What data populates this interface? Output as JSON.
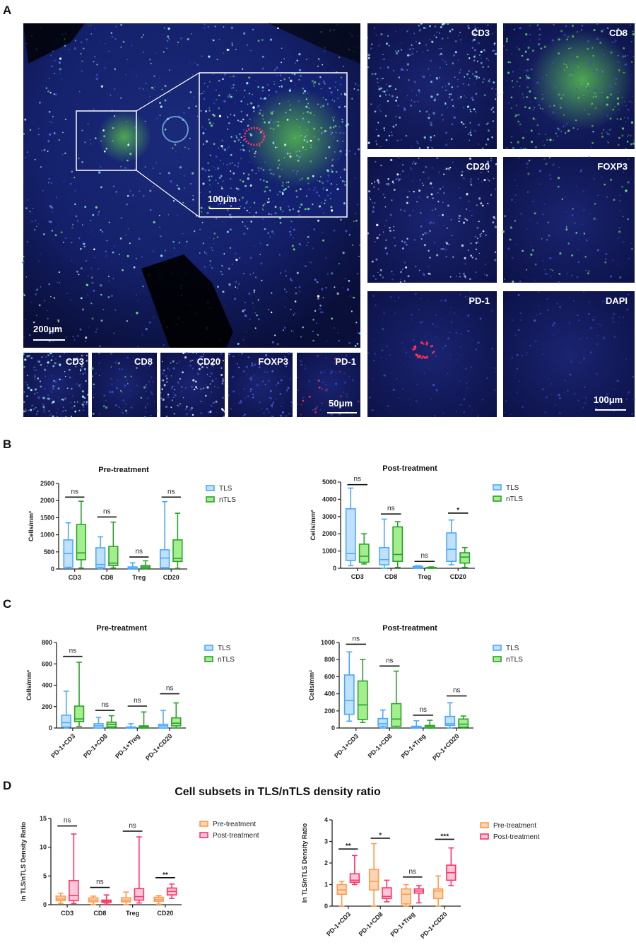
{
  "panel_labels": {
    "a": "A",
    "b": "B",
    "c": "C",
    "d": "D"
  },
  "panel_a": {
    "main_scale": "200μm",
    "inset_scale": "100μm",
    "strip_scale": "50μm",
    "grid_scale": "100μm",
    "grid_labels": [
      "CD3",
      "CD8",
      "CD20",
      "FOXP3",
      "PD-1",
      "DAPI"
    ],
    "strip_labels": [
      "CD3",
      "CD8",
      "CD20",
      "FOXP3",
      "PD-1"
    ]
  },
  "panel_d_title": "Cell subsets in TLS/nTLS density ratio",
  "chart_data": [
    {
      "type": "box",
      "panel": "B",
      "title": "Pre-treatment",
      "ylabel": "Cells/mm²",
      "ylim": [
        0,
        2500
      ],
      "yticks": [
        "0",
        "500",
        "1000",
        "1500",
        "2000",
        "2500"
      ],
      "categories": [
        "CD3",
        "CD8",
        "Treg",
        "CD20"
      ],
      "series": [
        {
          "name": "TLS",
          "color": "#4aa8ff",
          "fill": "#bfe1fb",
          "stats": [
            [
              20,
              50,
              450,
              850,
              1350
            ],
            [
              10,
              50,
              130,
              620,
              940
            ],
            [
              0,
              0,
              20,
              60,
              180
            ],
            [
              20,
              40,
              320,
              560,
              1970
            ]
          ]
        },
        {
          "name": "nTLS",
          "color": "#2ca02c",
          "fill": "#a3ef8e",
          "stats": [
            [
              30,
              270,
              470,
              1300,
              1980
            ],
            [
              30,
              100,
              170,
              660,
              1370
            ],
            [
              0,
              20,
              60,
              100,
              240
            ],
            [
              20,
              220,
              310,
              850,
              1630
            ]
          ]
        }
      ],
      "significance": [
        {
          "label": "ns",
          "y": 2100
        },
        {
          "label": "ns",
          "y": 1520
        },
        {
          "label": "ns",
          "y": 350
        },
        {
          "label": "ns",
          "y": 2100
        }
      ]
    },
    {
      "type": "box",
      "panel": "B",
      "title": "Post-treatment",
      "ylabel": "Cells/mm²",
      "ylim": [
        0,
        5000
      ],
      "yticks": [
        "0",
        "1000",
        "2000",
        "3000",
        "4000",
        "5000"
      ],
      "categories": [
        "CD3",
        "CD8",
        "Treg",
        "CD20"
      ],
      "series": [
        {
          "name": "TLS",
          "color": "#4aa8ff",
          "fill": "#bfe1fb",
          "stats": [
            [
              150,
              450,
              850,
              3450,
              4650
            ],
            [
              0,
              200,
              500,
              1200,
              2850
            ],
            [
              0,
              20,
              60,
              120,
              150
            ],
            [
              200,
              400,
              1100,
              2050,
              2800
            ]
          ]
        },
        {
          "name": "nTLS",
          "color": "#2ca02c",
          "fill": "#a3ef8e",
          "stats": [
            [
              250,
              350,
              700,
              1400,
              2000
            ],
            [
              50,
              400,
              800,
              2400,
              2700
            ],
            [
              0,
              10,
              30,
              50,
              80
            ],
            [
              50,
              300,
              650,
              900,
              1200
            ]
          ]
        }
      ],
      "significance": [
        {
          "label": "ns",
          "y": 4850
        },
        {
          "label": "ns",
          "y": 3150
        },
        {
          "label": "ns",
          "y": 400
        },
        {
          "label": "*",
          "y": 3200
        }
      ]
    },
    {
      "type": "box",
      "panel": "C",
      "title": "Pre-treatment",
      "ylabel": "Cells/mm²",
      "ylim": [
        0,
        800
      ],
      "yticks": [
        "0",
        "200",
        "400",
        "600",
        "800"
      ],
      "categories": [
        "PD-1+CD3",
        "PD-1+CD8",
        "PD-1+Treg",
        "PD-1+CD20"
      ],
      "series": [
        {
          "name": "TLS",
          "color": "#4aa8ff",
          "fill": "#bfe1fb",
          "stats": [
            [
              0,
              10,
              50,
              120,
              345
            ],
            [
              0,
              0,
              20,
              40,
              100
            ],
            [
              0,
              0,
              5,
              10,
              40
            ],
            [
              0,
              0,
              20,
              35,
              165
            ]
          ]
        },
        {
          "name": "nTLS",
          "color": "#2ca02c",
          "fill": "#a3ef8e",
          "stats": [
            [
              15,
              60,
              85,
              205,
              615
            ],
            [
              0,
              10,
              35,
              55,
              115
            ],
            [
              0,
              0,
              10,
              20,
              150
            ],
            [
              0,
              20,
              45,
              95,
              235
            ]
          ]
        }
      ],
      "significance": [
        {
          "label": "ns",
          "y": 670
        },
        {
          "label": "ns",
          "y": 165
        },
        {
          "label": "ns",
          "y": 205
        },
        {
          "label": "ns",
          "y": 320
        }
      ]
    },
    {
      "type": "box",
      "panel": "C",
      "title": "Post-treatment",
      "ylabel": "Cells/mm²",
      "ylim": [
        0,
        1000
      ],
      "yticks": [
        "0",
        "200",
        "400",
        "600",
        "800",
        "1000"
      ],
      "categories": [
        "PD-1+CD3",
        "PD-1+CD8",
        "PD-1+Treg",
        "PD-1+CD20"
      ],
      "series": [
        {
          "name": "TLS",
          "color": "#4aa8ff",
          "fill": "#bfe1fb",
          "stats": [
            [
              80,
              160,
              320,
              620,
              890
            ],
            [
              0,
              20,
              50,
              110,
              210
            ],
            [
              0,
              0,
              10,
              20,
              85
            ],
            [
              0,
              30,
              50,
              135,
              295
            ]
          ]
        },
        {
          "name": "nTLS",
          "color": "#2ca02c",
          "fill": "#a3ef8e",
          "stats": [
            [
              65,
              100,
              270,
              550,
              800
            ],
            [
              0,
              20,
              105,
              285,
              665
            ],
            [
              0,
              0,
              15,
              30,
              90
            ],
            [
              0,
              10,
              45,
              105,
              140
            ]
          ]
        }
      ],
      "significance": [
        {
          "label": "ns",
          "y": 980
        },
        {
          "label": "ns",
          "y": 725
        },
        {
          "label": "ns",
          "y": 150
        },
        {
          "label": "ns",
          "y": 375
        }
      ]
    },
    {
      "type": "box",
      "panel": "D",
      "title": "",
      "ylabel": "ln TLS/nTLS Density Ratio",
      "ylim": [
        0,
        15
      ],
      "yticks": [
        "0",
        "5",
        "10",
        "15"
      ],
      "categories": [
        "CD3",
        "CD8",
        "Treg",
        "CD20"
      ],
      "series": [
        {
          "name": "Pre-treatment",
          "color": "#ff9a4d",
          "fill": "#ffd4b3",
          "stats": [
            [
              0.2,
              0.7,
              1.0,
              1.5,
              2.0
            ],
            [
              0,
              0.5,
              0.8,
              1.2,
              1.5
            ],
            [
              0,
              0.5,
              0.8,
              1.2,
              2.2
            ],
            [
              0.1,
              0.6,
              0.9,
              1.3,
              1.6
            ]
          ]
        },
        {
          "name": "Post-treatment",
          "color": "#ff3366",
          "fill": "#ffc6d9",
          "stats": [
            [
              0.2,
              0.7,
              1.6,
              4.2,
              12.3
            ],
            [
              0.1,
              0.4,
              0.6,
              0.8,
              1.7
            ],
            [
              0.3,
              0.8,
              1.4,
              2.8,
              11.8
            ],
            [
              1.1,
              1.7,
              2.3,
              2.9,
              3.6
            ]
          ]
        }
      ],
      "significance": [
        {
          "label": "ns",
          "y": 13.7
        },
        {
          "label": "ns",
          "y": 3.0
        },
        {
          "label": "ns",
          "y": 12.8
        },
        {
          "label": "**",
          "y": 4.7
        }
      ]
    },
    {
      "type": "box",
      "panel": "D",
      "title": "",
      "ylabel": "ln TLS/nTLS Density Ratio",
      "ylim": [
        0,
        4
      ],
      "yticks": [
        "0",
        "1",
        "2",
        "3",
        "4"
      ],
      "categories": [
        "PD-1+CD3",
        "PD-1+CD8",
        "PD-1+Treg",
        "PD-1+CD20"
      ],
      "series": [
        {
          "name": "Pre-treatment",
          "color": "#ff9a4d",
          "fill": "#ffd4b3",
          "stats": [
            [
              0,
              0.55,
              0.75,
              1.0,
              1.15
            ],
            [
              0,
              0.75,
              1.15,
              1.7,
              2.9
            ],
            [
              0,
              0.1,
              0.55,
              0.8,
              1.0
            ],
            [
              0,
              0.35,
              0.7,
              0.8,
              1.4
            ]
          ]
        },
        {
          "name": "Post-treatment",
          "color": "#ff3366",
          "fill": "#ffc6d9",
          "stats": [
            [
              1.0,
              1.1,
              1.2,
              1.5,
              2.35
            ],
            [
              0.2,
              0.35,
              0.45,
              0.85,
              1.2
            ],
            [
              0.15,
              0.6,
              0.7,
              0.8,
              0.95
            ],
            [
              0.95,
              1.2,
              1.55,
              1.9,
              2.7
            ]
          ]
        }
      ],
      "significance": [
        {
          "label": "**",
          "y": 2.65
        },
        {
          "label": "*",
          "y": 3.15
        },
        {
          "label": "ns",
          "y": 1.35
        },
        {
          "label": "***",
          "y": 3.1
        }
      ]
    }
  ]
}
